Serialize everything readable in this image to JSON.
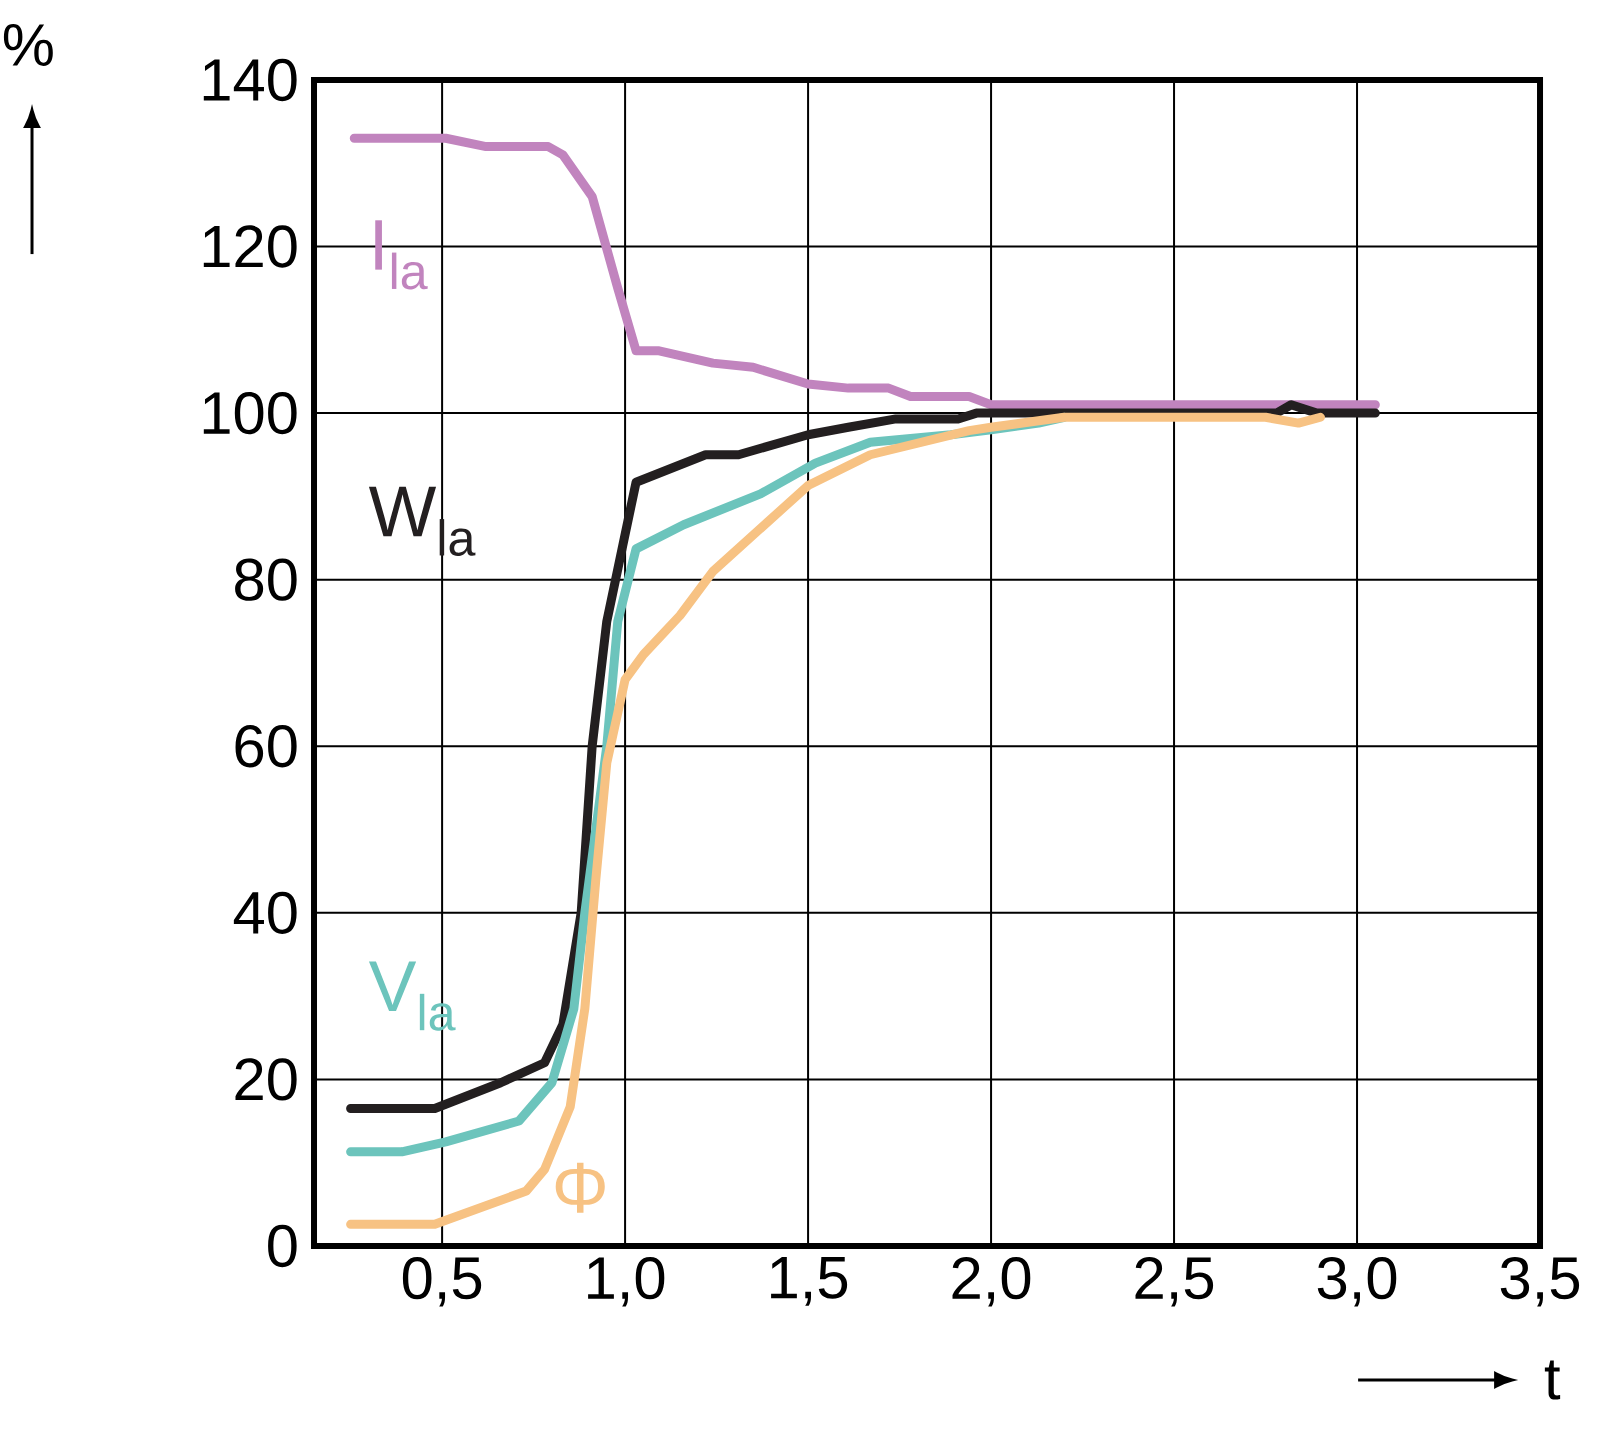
{
  "chart_data": {
    "type": "line",
    "xlabel": "t",
    "ylabel": "%",
    "xlim": [
      0.15,
      3.5
    ],
    "ylim": [
      0,
      140
    ],
    "xticks": [
      {
        "value": 0.5,
        "label": "0,5"
      },
      {
        "value": 1.0,
        "label": "1,0"
      },
      {
        "value": 1.5,
        "label": "1,5"
      },
      {
        "value": 2.0,
        "label": "2,0"
      },
      {
        "value": 2.5,
        "label": "2,5"
      },
      {
        "value": 3.0,
        "label": "3,0"
      },
      {
        "value": 3.5,
        "label": "3,5"
      }
    ],
    "yticks": [
      0,
      20,
      40,
      60,
      80,
      100,
      120,
      140
    ],
    "grid": true,
    "legend": false,
    "marker": "none",
    "line_style": "solid",
    "series": [
      {
        "name": "I$_{la}$",
        "color": "#c184be",
        "x": [
          0.26,
          0.51,
          0.62,
          0.79,
          0.83,
          0.91,
          0.98,
          1.03,
          1.09,
          1.24,
          1.35,
          1.5,
          1.61,
          1.72,
          1.78,
          1.94,
          2.0,
          3.05
        ],
        "values": [
          133,
          133,
          132,
          132,
          131,
          126,
          115,
          107.5,
          107.5,
          106,
          105.5,
          103.5,
          103,
          103,
          102,
          102,
          101,
          101
        ]
      },
      {
        "name": "W$_{la}$",
        "color": "#231f20",
        "x": [
          0.25,
          0.48,
          0.66,
          0.78,
          0.83,
          0.88,
          0.91,
          0.95,
          1.03,
          1.22,
          1.31,
          1.5,
          1.61,
          1.74,
          1.91,
          1.96,
          2.78,
          2.82,
          2.89,
          3.05
        ],
        "values": [
          16.5,
          16.5,
          19.6,
          22,
          26.6,
          40,
          60,
          75,
          91.7,
          95,
          95,
          97.4,
          98.3,
          99.3,
          99.3,
          100,
          100,
          101,
          100,
          100
        ]
      },
      {
        "name": "V$_{la}$",
        "color": "#6cc4bc",
        "x": [
          0.25,
          0.39,
          0.51,
          0.71,
          0.8,
          0.86,
          0.89,
          0.95,
          0.98,
          1.03,
          1.16,
          1.37,
          1.52,
          1.67,
          1.89,
          2.0,
          2.13,
          2.2
        ],
        "values": [
          11.3,
          11.3,
          12.5,
          15,
          19.6,
          28.5,
          40,
          60,
          75,
          83.7,
          86.6,
          90.3,
          94,
          96.5,
          97.4,
          98,
          98.8,
          99.5
        ]
      },
      {
        "name": "Φ",
        "color": "#f7c283",
        "x": [
          0.25,
          0.48,
          0.73,
          0.78,
          0.85,
          0.89,
          0.92,
          0.95,
          1.0,
          1.05,
          1.15,
          1.24,
          1.5,
          1.67,
          1.94,
          2.0,
          2.2,
          2.75,
          2.84,
          2.9
        ],
        "values": [
          2.6,
          2.6,
          6.6,
          9.2,
          16.7,
          28.5,
          44,
          58,
          68,
          71,
          75.7,
          81,
          91.3,
          95,
          97.9,
          98.3,
          99.5,
          99.5,
          98.8,
          99.5
        ]
      }
    ]
  }
}
